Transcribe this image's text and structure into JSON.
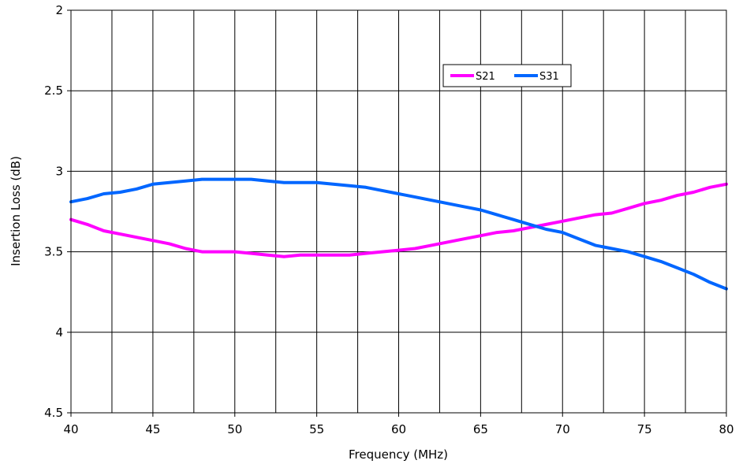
{
  "chart_data": {
    "type": "line",
    "title": "",
    "xlabel": "Frequency (MHz)",
    "ylabel": "Insertion Loss (dB)",
    "xlim": [
      40,
      80
    ],
    "ylim": [
      2,
      4.5
    ],
    "y_inverted": true,
    "grid": true,
    "legend_position": "top-right",
    "x_ticks": [
      40,
      45,
      50,
      55,
      60,
      65,
      70,
      75,
      80
    ],
    "x_tick_labels": [
      "40",
      "45",
      "50",
      "55",
      "60",
      "65",
      "70",
      "75",
      "80"
    ],
    "y_ticks": [
      2,
      2.5,
      3,
      3.5,
      4,
      4.5
    ],
    "y_tick_labels": [
      "2",
      "2.5",
      "3",
      "3.5",
      "4",
      "4.5"
    ],
    "series": [
      {
        "name": "S21",
        "color": "#ff00ff",
        "x": [
          40,
          41,
          42,
          43,
          44,
          45,
          46,
          47,
          48,
          49,
          50,
          51,
          52,
          53,
          54,
          55,
          56,
          57,
          58,
          59,
          60,
          61,
          62,
          63,
          64,
          65,
          66,
          67,
          68,
          69,
          70,
          71,
          72,
          73,
          74,
          75,
          76,
          77,
          78,
          79,
          80
        ],
        "values": [
          3.3,
          3.33,
          3.37,
          3.39,
          3.41,
          3.43,
          3.45,
          3.48,
          3.5,
          3.5,
          3.5,
          3.51,
          3.52,
          3.53,
          3.52,
          3.52,
          3.52,
          3.52,
          3.51,
          3.5,
          3.49,
          3.48,
          3.46,
          3.44,
          3.42,
          3.4,
          3.38,
          3.37,
          3.35,
          3.33,
          3.31,
          3.29,
          3.27,
          3.26,
          3.23,
          3.2,
          3.18,
          3.15,
          3.13,
          3.1,
          3.08
        ]
      },
      {
        "name": "S31",
        "color": "#0066ff",
        "x": [
          40,
          41,
          42,
          43,
          44,
          45,
          46,
          47,
          48,
          49,
          50,
          51,
          52,
          53,
          54,
          55,
          56,
          57,
          58,
          59,
          60,
          61,
          62,
          63,
          64,
          65,
          66,
          67,
          68,
          69,
          70,
          71,
          72,
          73,
          74,
          75,
          76,
          77,
          78,
          79,
          80
        ],
        "values": [
          3.19,
          3.17,
          3.14,
          3.13,
          3.11,
          3.08,
          3.07,
          3.06,
          3.05,
          3.05,
          3.05,
          3.05,
          3.06,
          3.07,
          3.07,
          3.07,
          3.08,
          3.09,
          3.1,
          3.12,
          3.14,
          3.16,
          3.18,
          3.2,
          3.22,
          3.24,
          3.27,
          3.3,
          3.33,
          3.36,
          3.38,
          3.42,
          3.46,
          3.48,
          3.5,
          3.53,
          3.56,
          3.6,
          3.64,
          3.69,
          3.73
        ]
      }
    ]
  }
}
